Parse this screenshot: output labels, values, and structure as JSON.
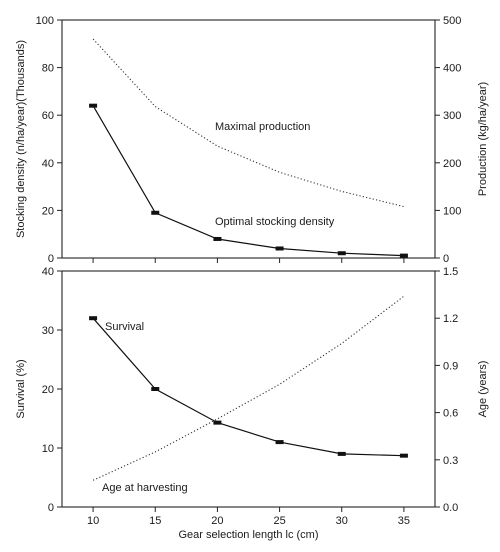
{
  "chart_data": [
    {
      "type": "line",
      "x": [
        10,
        15,
        20,
        25,
        30,
        35
      ],
      "xlim": [
        7.5,
        37.5
      ],
      "left_axis": {
        "label": "Stocking density (n/ha/year)(Thousands)",
        "ylim": [
          0,
          100
        ],
        "ticks": [
          0,
          20,
          40,
          60,
          80,
          100
        ]
      },
      "right_axis": {
        "label": "Production (kg/ha/year)",
        "ylim": [
          0,
          500
        ],
        "ticks": [
          0,
          100,
          200,
          300,
          400,
          500
        ]
      },
      "series": [
        {
          "name": "Optimal stocking density",
          "axis": "left",
          "style": "solid",
          "markers": true,
          "values": [
            64,
            19,
            8,
            4,
            2,
            1
          ]
        },
        {
          "name": "Maximal production",
          "axis": "right",
          "style": "dotted",
          "markers": false,
          "values": [
            460,
            318,
            235,
            180,
            140,
            108
          ]
        }
      ],
      "grid": false
    },
    {
      "type": "line",
      "x": [
        10,
        15,
        20,
        25,
        30,
        35
      ],
      "xlim": [
        7.5,
        37.5
      ],
      "xlabel": "Gear selection length lc (cm)",
      "xticks": [
        10,
        15,
        20,
        25,
        30,
        35
      ],
      "left_axis": {
        "label": "Survival (%)",
        "ylim": [
          0,
          40
        ],
        "ticks": [
          0,
          10,
          20,
          30,
          40
        ]
      },
      "right_axis": {
        "label": "Age (years)",
        "ylim": [
          0,
          1.5
        ],
        "ticks": [
          "0.0",
          "0.3",
          "0.6",
          "0.9",
          "1.2",
          "1.5"
        ]
      },
      "series": [
        {
          "name": "Survival",
          "axis": "left",
          "style": "solid",
          "markers": true,
          "values": [
            32,
            20,
            14.3,
            11,
            9,
            8.7
          ]
        },
        {
          "name": "Age at harvesting",
          "axis": "right",
          "style": "dotted",
          "markers": false,
          "values": [
            0.17,
            0.35,
            0.56,
            0.78,
            1.04,
            1.34
          ]
        }
      ],
      "grid": false
    }
  ]
}
